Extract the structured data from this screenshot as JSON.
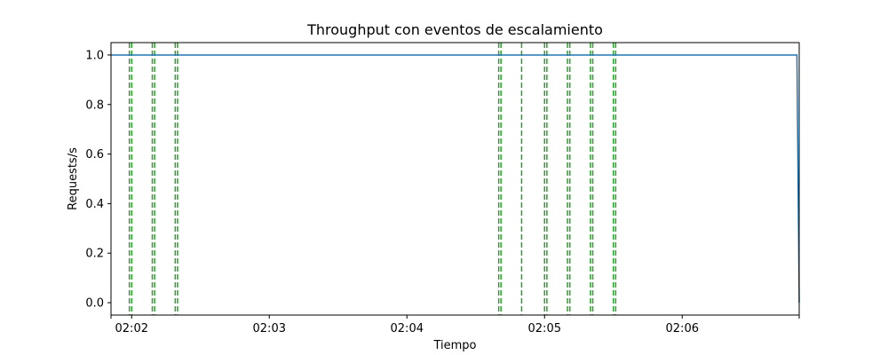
{
  "chart_data": {
    "type": "line",
    "title": "Throughput con eventos de escalamiento",
    "xlabel": "Tiempo",
    "ylabel": "Requests/s",
    "xlim": [
      "02:01:51",
      "02:06:51"
    ],
    "ylim": [
      -0.05,
      1.05
    ],
    "x_ticks": [
      {
        "time": "02:02:00",
        "label": "02:02"
      },
      {
        "time": "02:03:00",
        "label": "02:03"
      },
      {
        "time": "02:04:00",
        "label": "02:04"
      },
      {
        "time": "02:05:00",
        "label": "02:05"
      },
      {
        "time": "02:06:00",
        "label": "02:06"
      }
    ],
    "y_ticks": [
      {
        "value": 0.0,
        "label": "0.0"
      },
      {
        "value": 0.2,
        "label": "0.2"
      },
      {
        "value": 0.4,
        "label": "0.4"
      },
      {
        "value": 0.6,
        "label": "0.6"
      },
      {
        "value": 0.8,
        "label": "0.8"
      },
      {
        "value": 1.0,
        "label": "1.0"
      }
    ],
    "series": [
      {
        "color": "#1f77b4",
        "points": [
          {
            "time": "02:01:51",
            "value": 1.0
          },
          {
            "time": "02:06:50",
            "value": 1.0
          },
          {
            "time": "02:06:51",
            "value": 0.0
          }
        ]
      }
    ],
    "event_lines": {
      "color": "#2ca02c",
      "style": "dashed",
      "times": [
        "02:01:59.0",
        "02:02:00.0",
        "02:02:09.0",
        "02:02:10.0",
        "02:02:19.0",
        "02:02:20.0",
        "02:04:40.0",
        "02:04:41.0",
        "02:04:50.0",
        "02:05:00.0",
        "02:05:01.0",
        "02:05:10.0",
        "02:05:11.0",
        "02:05:20.0",
        "02:05:21.0",
        "02:05:30.0",
        "02:05:31.0"
      ]
    },
    "grid": false,
    "legend": "none"
  }
}
